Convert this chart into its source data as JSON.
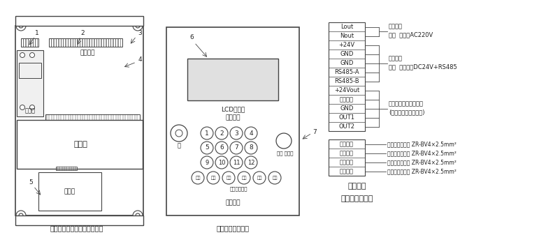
{
  "bg_color": "#ffffff",
  "line_color": "#444444",
  "text_color": "#222222",
  "terminal_rows": [
    "Lout",
    "Nout",
    "+24V",
    "GND",
    "GND",
    "RS485-A",
    "RS485-B",
    "+24Vout",
    "消防检测",
    "GND",
    "OUT1",
    "OUT2"
  ],
  "sensor_rows": [
    "温度检测",
    "雨雪检测",
    "霜雾检测",
    "风压检测"
  ],
  "group1_label1": "引至天窗",
  "group1_label2": "锂管  主回路AC220V",
  "group2_label1": "引至天窗",
  "group2_label2": "锂管  控制回路DC24V+RS485",
  "group3_label1": "引至消防输入输出模块",
  "group3_label2": "(模块由消防系统提供)",
  "sensor_labels": [
    "引至温度传感器 ZR-BV4×2.5mm²",
    "引至雨雪传感器 ZR-BV4×2.5mm²",
    "引至霜雾传感器 ZR-BV4×2.5mm²",
    "引至风压传感器 ZR-BV4×2.5mm²"
  ],
  "caption1": "控制笱安装及内部元件布置图",
  "caption2": "控制笱面板布置图",
  "caption3": "接线端子",
  "caption4": "电器设备材料表",
  "lcd_label": "LCD显示屏",
  "window_label": "窗号选择",
  "keypad_label": "操作键盘",
  "lock_label": "锁",
  "power_switch_label": "电源 锁开关",
  "emergency_label": "消防紧急启动",
  "btn_row1": [
    "开闸",
    "确认",
    "设置",
    "复位"
  ],
  "btn_row2": [
    "开窗",
    "关窗"
  ],
  "label_breaker": "断路器",
  "label_mainboard": "主控板",
  "label_transformer": "变压器",
  "label_terminal": "接线端子",
  "num1": "1",
  "num2": "2",
  "num3": "3",
  "num4": "4",
  "num5": "5",
  "num6": "6",
  "num7": "7"
}
